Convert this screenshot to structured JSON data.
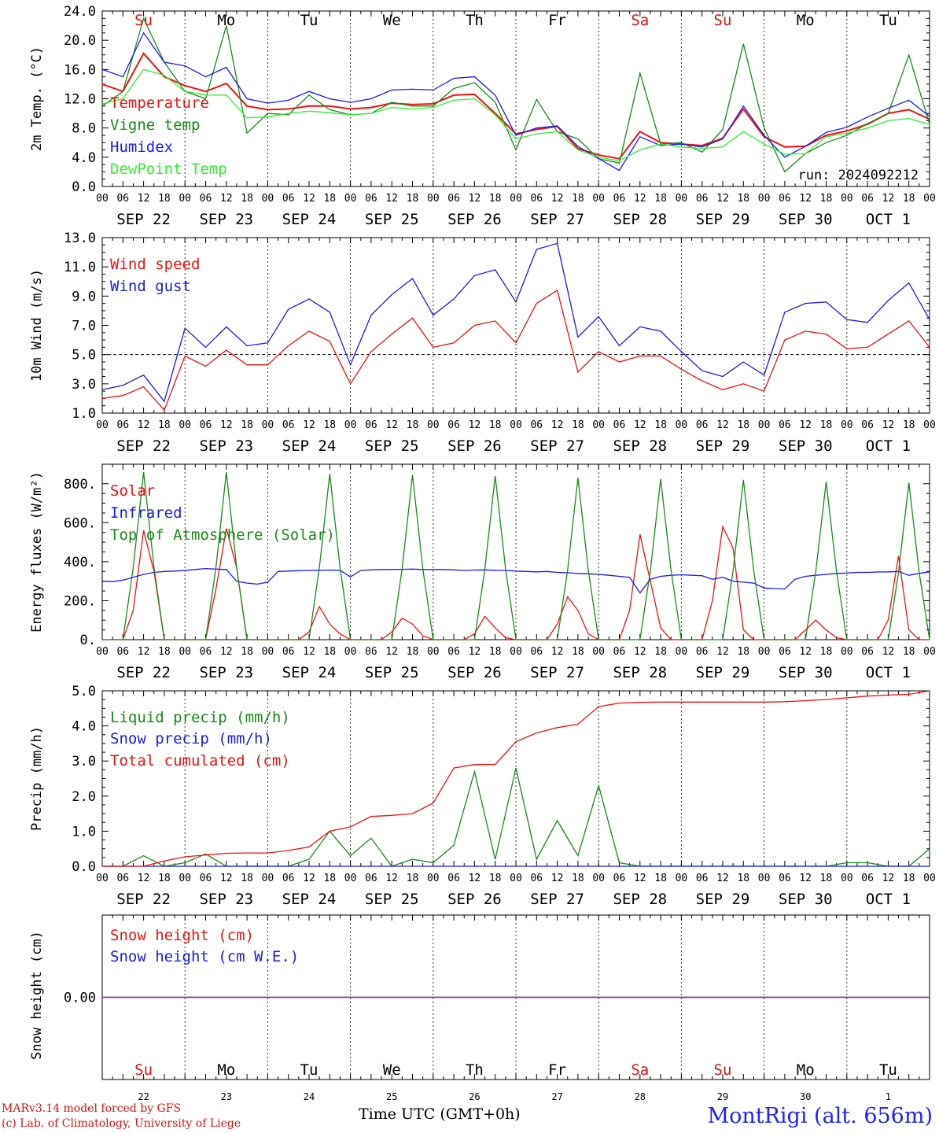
{
  "footer": {
    "model": "MARv3.14 model forced by GFS",
    "lab": "(c) Lab. of Climatology, University of Liege",
    "time_label": "Time UTC (GMT+0h)",
    "station": "MontRigi (alt. 656m)"
  },
  "day_labels": [
    "Su",
    "Mo",
    "Tu",
    "We",
    "Th",
    "Fr",
    "Sa",
    "Su",
    "Mo",
    "Tu"
  ],
  "day_label_colors": [
    "#e01010",
    "#000000",
    "#000000",
    "#000000",
    "#000000",
    "#000000",
    "#e01010",
    "#e01010",
    "#000000",
    "#000000"
  ],
  "date_labels": [
    "SEP 22",
    "SEP 23",
    "SEP 24",
    "SEP 25",
    "SEP 26",
    "SEP 27",
    "SEP 28",
    "SEP 29",
    "SEP 30",
    "OCT  1"
  ],
  "date_numbers": [
    "22",
    "23",
    "24",
    "25",
    "26",
    "27",
    "28",
    "29",
    "30",
    "1"
  ],
  "hour_ticks": [
    "00",
    "06",
    "12",
    "18"
  ],
  "colors": {
    "red": "#ee1111",
    "dark_green": "#1a8a1a",
    "blue": "#1a1aee",
    "light_green": "#33ee33",
    "purple": "#7a3aa0"
  },
  "chart_data": [
    {
      "type": "line",
      "ylabel": "2m Temp. (°C)",
      "ylim": [
        0,
        24
      ],
      "yticks": [
        "0.0",
        "4.0",
        "8.0",
        "12.0",
        "16.0",
        "20.0",
        "24.0"
      ],
      "annotation": "run: 2024092212",
      "x": [
        0,
        6,
        12,
        18,
        24,
        30,
        36,
        42,
        48,
        54,
        60,
        66,
        72,
        78,
        84,
        90,
        96,
        102,
        108,
        114,
        120,
        126,
        132,
        138,
        144,
        150,
        156,
        162,
        168,
        174,
        180,
        186,
        192,
        198,
        204,
        210,
        216,
        222,
        228,
        234,
        240
      ],
      "series": [
        {
          "name": "Temperature",
          "color": "#ee1111",
          "values": [
            14,
            13,
            18.2,
            15,
            13.8,
            13,
            14.1,
            11,
            10.5,
            10.6,
            11,
            11,
            10.6,
            10.8,
            11.4,
            11.2,
            11.3,
            12.5,
            12.6,
            10,
            7.2,
            7.8,
            8.2,
            5.2,
            4.3,
            3.8,
            7.5,
            6,
            5.8,
            5.6,
            6.6,
            10.6,
            6.8,
            5.4,
            5.5,
            7,
            7.6,
            8.5,
            10,
            10.5,
            9.2
          ]
        },
        {
          "name": "Vigne temp",
          "color": "#1a8a1a",
          "values": [
            11,
            13,
            23,
            17,
            13,
            12,
            22,
            7.3,
            10,
            9.8,
            12.5,
            10.5,
            9.8,
            10,
            11.5,
            11,
            11,
            13.4,
            14.2,
            11.5,
            5,
            11.9,
            7.5,
            6.5,
            3.8,
            3.2,
            15.5,
            5.8,
            6,
            4.7,
            7.8,
            19.5,
            8,
            2,
            4.5,
            6,
            7,
            8.6,
            10,
            18,
            8.5
          ]
        },
        {
          "name": "Humidex",
          "color": "#1a1aee",
          "values": [
            16,
            15,
            21,
            17,
            16.5,
            15,
            16.3,
            12,
            11.4,
            11.8,
            13,
            12,
            11.5,
            12,
            13.2,
            13.3,
            13.2,
            14.8,
            15,
            12.5,
            7,
            8,
            8.3,
            5.5,
            3.8,
            2.2,
            6.8,
            5.6,
            5.8,
            5.4,
            6.5,
            11,
            7,
            4,
            5.5,
            7.4,
            8.1,
            9.5,
            10.7,
            11.8,
            9.6
          ]
        },
        {
          "name": "DewPoint Temp",
          "color": "#33ee33",
          "values": [
            11.3,
            12,
            16,
            15.2,
            13,
            12.5,
            12.5,
            9.4,
            9.5,
            10,
            10.3,
            10.1,
            9.8,
            10,
            10.8,
            10.6,
            10.8,
            11.8,
            12,
            9.8,
            6.5,
            7.2,
            7.5,
            5,
            4,
            3.5,
            5,
            5.8,
            5.4,
            5.2,
            5.4,
            7.5,
            5.8,
            4.4,
            4.5,
            6.8,
            7.3,
            8,
            9,
            9.3,
            8.5
          ]
        }
      ]
    },
    {
      "type": "line",
      "ylabel": "10m Wind (m/s)",
      "ylim": [
        1,
        13
      ],
      "yticks": [
        "1.0",
        "3.0",
        "5.0",
        "7.0",
        "9.0",
        "11.0",
        "13.0"
      ],
      "reference_line": 5,
      "x": [
        0,
        6,
        12,
        18,
        24,
        30,
        36,
        42,
        48,
        54,
        60,
        66,
        72,
        78,
        84,
        90,
        96,
        102,
        108,
        114,
        120,
        126,
        132,
        138,
        144,
        150,
        156,
        162,
        168,
        174,
        180,
        186,
        192,
        198,
        204,
        210,
        216,
        222,
        228,
        234,
        240
      ],
      "series": [
        {
          "name": "Wind speed",
          "color": "#ee1111",
          "values": [
            2,
            2.2,
            2.8,
            1.2,
            4.9,
            4.2,
            5.3,
            4.3,
            4.3,
            5.6,
            6.6,
            5.9,
            3,
            5.2,
            6.4,
            7.5,
            5.5,
            5.8,
            7,
            7.3,
            5.8,
            8.5,
            9.4,
            3.8,
            5.2,
            4.5,
            4.9,
            4.9,
            4,
            3.2,
            2.6,
            3,
            2.5,
            6,
            6.6,
            6.4,
            5.4,
            5.5,
            6.4,
            7.3,
            5.5
          ]
        },
        {
          "name": "Wind gust",
          "color": "#1a1aee",
          "values": [
            2.6,
            2.9,
            3.6,
            1.8,
            6.8,
            5.5,
            6.9,
            5.6,
            5.8,
            8.1,
            8.8,
            7.9,
            4.3,
            7.7,
            9.1,
            10.2,
            7.7,
            8.8,
            10.4,
            10.8,
            8.6,
            12.2,
            12.6,
            6.2,
            7.6,
            5.6,
            6.9,
            6.6,
            5.2,
            3.9,
            3.5,
            4.5,
            3.6,
            7.9,
            8.5,
            8.6,
            7.4,
            7.2,
            8.7,
            9.9,
            7.4
          ]
        }
      ]
    },
    {
      "type": "line",
      "ylabel": "Energy fluxes (W/m²)",
      "ylim": [
        0,
        900
      ],
      "yticks": [
        "0.",
        "200.",
        "400.",
        "600.",
        "800."
      ],
      "x": [
        0,
        3,
        6,
        9,
        12,
        15,
        18,
        21,
        24,
        27,
        30,
        33,
        36,
        39,
        42,
        45,
        48,
        51,
        54,
        57,
        60,
        63,
        66,
        69,
        72,
        75,
        78,
        81,
        84,
        87,
        90,
        93,
        96,
        99,
        102,
        105,
        108,
        111,
        114,
        117,
        120,
        123,
        126,
        129,
        132,
        135,
        138,
        141,
        144,
        147,
        150,
        153,
        156,
        159,
        162,
        165,
        168,
        171,
        174,
        177,
        180,
        183,
        186,
        189,
        192,
        195,
        198,
        201,
        204,
        207,
        210,
        213,
        216,
        219,
        222,
        225,
        228,
        231,
        234,
        237,
        240
      ],
      "series": [
        {
          "name": "Solar",
          "color": "#ee1111",
          "values": [
            0,
            0,
            0,
            150,
            560,
            350,
            0,
            0,
            0,
            0,
            0,
            260,
            570,
            370,
            0,
            0,
            0,
            0,
            0,
            0,
            40,
            170,
            80,
            30,
            0,
            0,
            0,
            0,
            40,
            110,
            80,
            20,
            0,
            0,
            0,
            0,
            30,
            120,
            60,
            10,
            0,
            0,
            0,
            0,
            80,
            220,
            150,
            30,
            0,
            0,
            0,
            150,
            540,
            300,
            60,
            0,
            0,
            0,
            0,
            200,
            580,
            470,
            50,
            0,
            0,
            0,
            0,
            0,
            50,
            100,
            50,
            10,
            0,
            0,
            0,
            0,
            100,
            430,
            50,
            0,
            0
          ]
        },
        {
          "name": "Infrared",
          "color": "#1a1aee",
          "values": [
            300,
            298,
            305,
            320,
            335,
            345,
            350,
            352,
            355,
            360,
            365,
            362,
            360,
            300,
            290,
            285,
            295,
            350,
            352,
            354,
            355,
            356,
            357,
            356,
            322,
            355,
            358,
            360,
            360,
            361,
            362,
            360,
            360,
            360,
            358,
            355,
            357,
            358,
            356,
            355,
            352,
            350,
            348,
            350,
            345,
            343,
            340,
            338,
            335,
            330,
            325,
            320,
            240,
            310,
            325,
            330,
            333,
            330,
            328,
            310,
            320,
            300,
            295,
            290,
            265,
            262,
            260,
            310,
            325,
            330,
            335,
            340,
            342,
            345,
            345,
            347,
            348,
            350,
            330,
            340,
            348
          ]
        },
        {
          "name": "Top of Atmosphere (Solar)",
          "color": "#1a8a1a",
          "values": [
            0,
            0,
            0,
            370,
            860,
            370,
            0,
            0,
            0,
            0,
            0,
            370,
            860,
            370,
            0,
            0,
            0,
            0,
            0,
            0,
            0,
            370,
            850,
            370,
            0,
            0,
            0,
            0,
            0,
            365,
            845,
            365,
            0,
            0,
            0,
            0,
            0,
            362,
            840,
            362,
            0,
            0,
            0,
            0,
            0,
            358,
            830,
            358,
            0,
            0,
            0,
            0,
            0,
            355,
            825,
            355,
            0,
            0,
            0,
            0,
            0,
            352,
            820,
            352,
            0,
            0,
            0,
            0,
            0,
            350,
            810,
            350,
            0,
            0,
            0,
            0,
            0,
            345,
            805,
            345,
            0
          ]
        }
      ]
    },
    {
      "type": "line",
      "ylabel": "Precip (mm/h)",
      "ylim": [
        0,
        5
      ],
      "yticks": [
        "0.0",
        "1.0",
        "2.0",
        "3.0",
        "4.0",
        "5.0"
      ],
      "x": [
        0,
        6,
        12,
        18,
        24,
        30,
        36,
        42,
        48,
        54,
        60,
        66,
        72,
        78,
        84,
        90,
        96,
        102,
        108,
        114,
        120,
        126,
        132,
        138,
        144,
        150,
        156,
        162,
        168,
        174,
        180,
        186,
        192,
        198,
        204,
        210,
        216,
        222,
        228,
        234,
        240
      ],
      "series": [
        {
          "name": "Liquid precip (mm/h)",
          "color": "#1a8a1a",
          "values": [
            0,
            0,
            0.3,
            0,
            0.1,
            0.35,
            0,
            0,
            0,
            0,
            0.2,
            1.0,
            0.3,
            0.8,
            0,
            0.2,
            0.1,
            0.6,
            2.7,
            0.2,
            2.8,
            0.2,
            1.3,
            0.3,
            2.3,
            0.1,
            0,
            0,
            0,
            0,
            0,
            0,
            0,
            0,
            0,
            0,
            0.1,
            0.1,
            0,
            0,
            0.5
          ]
        },
        {
          "name": "Snow precip (mm/h)",
          "color": "#1a1aee",
          "values": [
            0,
            0,
            0,
            0,
            0,
            0,
            0,
            0,
            0,
            0,
            0,
            0,
            0,
            0,
            0,
            0,
            0,
            0,
            0,
            0,
            0,
            0,
            0,
            0,
            0,
            0,
            0,
            0,
            0,
            0,
            0,
            0,
            0,
            0,
            0,
            0,
            0,
            0,
            0,
            0,
            0
          ]
        },
        {
          "name": "Total cumulated (cm)",
          "color": "#ee1111",
          "values": [
            0,
            0,
            0,
            0.15,
            0.27,
            0.32,
            0.37,
            0.38,
            0.38,
            0.45,
            0.55,
            1.0,
            1.12,
            1.42,
            1.45,
            1.5,
            1.8,
            2.8,
            2.9,
            2.9,
            3.55,
            3.8,
            3.95,
            4.05,
            4.55,
            4.65,
            4.67,
            4.68,
            4.68,
            4.68,
            4.68,
            4.68,
            4.68,
            4.69,
            4.72,
            4.75,
            4.8,
            4.85,
            4.88,
            4.9,
            5.0
          ]
        }
      ]
    },
    {
      "type": "line",
      "ylabel": "Snow height (cm)",
      "yticks": [
        "0.00"
      ],
      "x": [
        0,
        240
      ],
      "series": [
        {
          "name": "Snow height (cm)",
          "color": "#ee1111",
          "values": [
            0,
            0
          ]
        },
        {
          "name": "Snow height (cm W.E.)",
          "color": "#1a1aee",
          "values": [
            0,
            0
          ]
        }
      ]
    }
  ]
}
